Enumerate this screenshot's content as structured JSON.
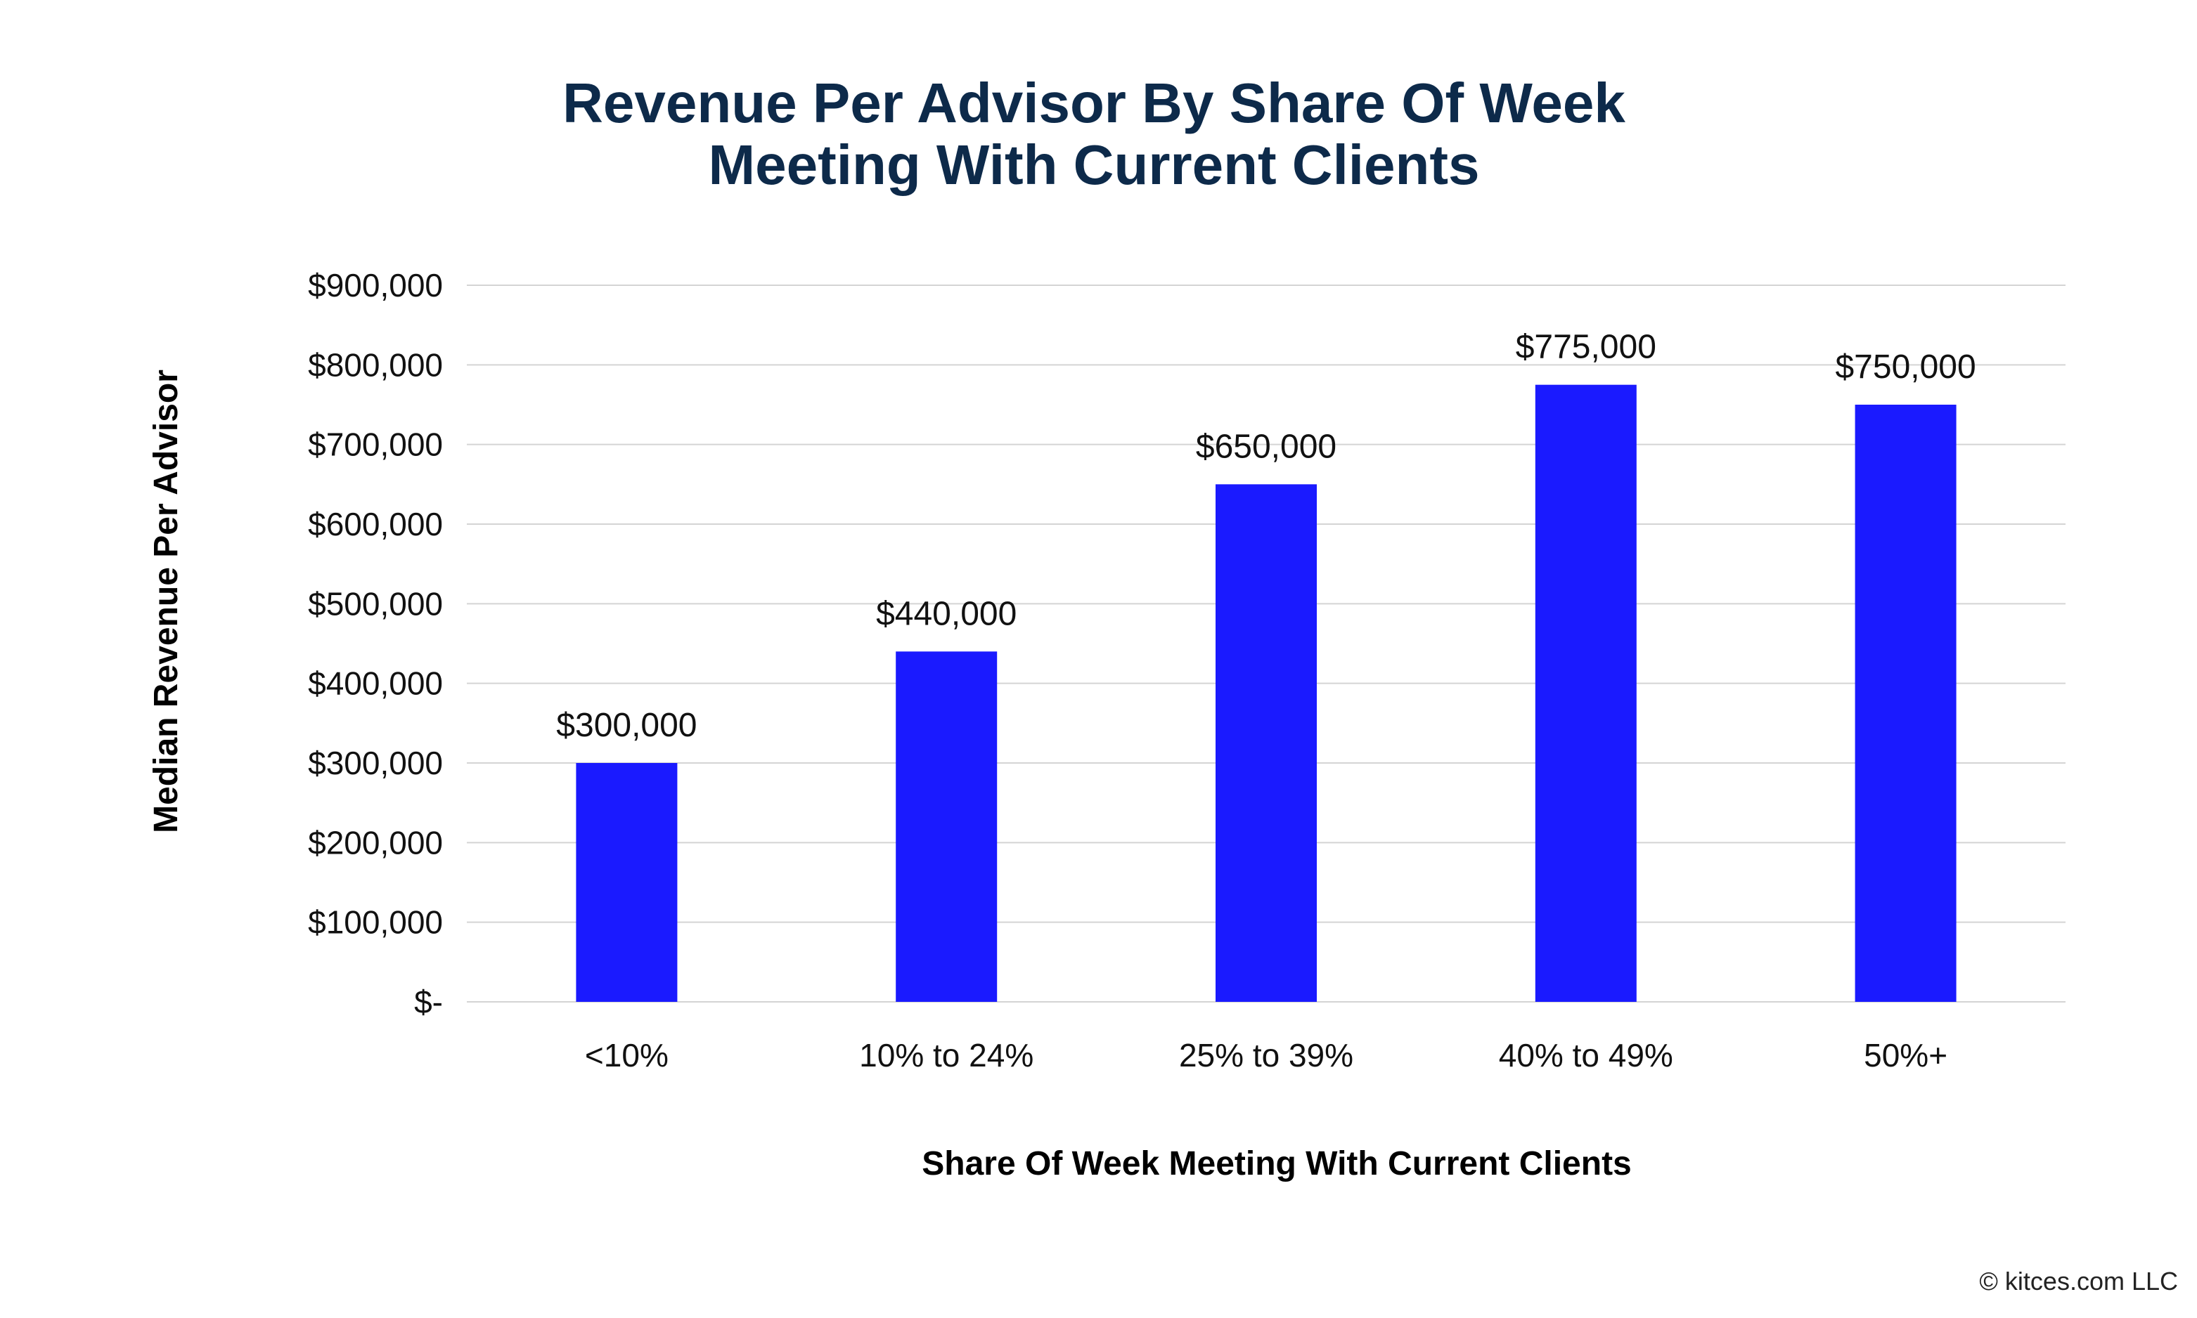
{
  "chart_data": {
    "type": "bar",
    "title": [
      "Revenue Per Advisor By Share Of Week",
      "Meeting With Current Clients"
    ],
    "xlabel": "Share Of Week Meeting With Current Clients",
    "ylabel": "Median Revenue Per Advisor",
    "categories": [
      "<10%",
      "10% to 24%",
      "25% to 39%",
      "40% to 49%",
      "50%+"
    ],
    "values": [
      300000,
      440000,
      650000,
      775000,
      750000
    ],
    "data_labels": [
      "$300,000",
      "$440,000",
      "$650,000",
      "$775,000",
      "$750,000"
    ],
    "ylim": [
      0,
      900000
    ],
    "yticks": [
      0,
      100000,
      200000,
      300000,
      400000,
      500000,
      600000,
      700000,
      800000,
      900000
    ],
    "ytick_labels": [
      "$-",
      "$100,000",
      "$200,000",
      "$300,000",
      "$400,000",
      "$500,000",
      "$600,000",
      "$700,000",
      "$800,000",
      "$900,000"
    ],
    "grid": true,
    "bar_color": "#1a1aff",
    "title_color": "#0d2a4a"
  },
  "credit": "© kitces.com LLC"
}
